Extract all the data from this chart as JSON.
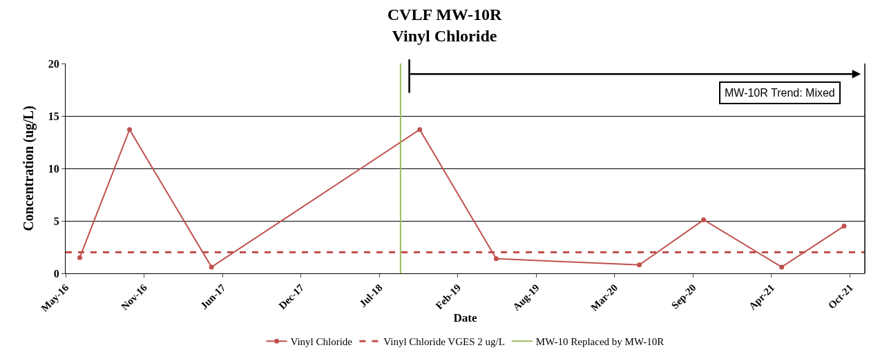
{
  "chart_data": {
    "type": "line",
    "title": "CVLF MW-10R\nVinyl Chloride",
    "xlabel": "Date",
    "ylabel": "Concentration (ug/L)",
    "x": [
      "2016-06-15",
      "2016-10-20",
      "2017-05-17",
      "2018-10-30",
      "2019-05-13",
      "2020-05-12",
      "2020-10-23",
      "2021-05-10",
      "2021-10-16"
    ],
    "series": [
      {
        "name": "Vinyl Chloride",
        "color": "#c0504d",
        "values": [
          1.5,
          13.7,
          0.6,
          13.7,
          1.4,
          0.8,
          5.1,
          0.6,
          4.5
        ]
      }
    ],
    "marker": "circle",
    "line_style": "solid",
    "xlim": [
      "2016-05-10",
      "2021-12-08"
    ],
    "xticks": [
      {
        "value": "2016-05-10",
        "label": "May-16"
      },
      {
        "value": "2016-11-26",
        "label": "Nov-16"
      },
      {
        "value": "2017-06-14",
        "label": "Jun-17"
      },
      {
        "value": "2017-12-31",
        "label": "Dec-17"
      },
      {
        "value": "2018-07-19",
        "label": "Jul-18"
      },
      {
        "value": "2019-02-04",
        "label": "Feb-19"
      },
      {
        "value": "2019-08-23",
        "label": "Aug-19"
      },
      {
        "value": "2020-03-10",
        "label": "Mar-20"
      },
      {
        "value": "2020-09-26",
        "label": "Sep-20"
      },
      {
        "value": "2021-04-14",
        "label": "Apr-21"
      },
      {
        "value": "2021-10-31",
        "label": "Oct-21"
      }
    ],
    "ylim": [
      0,
      20
    ],
    "yticks": [
      0,
      5,
      10,
      15,
      20
    ],
    "grid": "y",
    "ref_lines": [
      {
        "axis": "y",
        "value": 2,
        "label": "Vinyl Chloride VGES 2 ug/L",
        "color": "#c0504d",
        "line_style": "dashed"
      },
      {
        "axis": "x",
        "value": "2018-09-11",
        "label": "MW-10 Replaced by MW-10R",
        "color": "#9bbb59",
        "line_style": "solid"
      }
    ],
    "annotations": [
      "MW-10R Trend: Mixed"
    ],
    "legend": "bottom"
  }
}
